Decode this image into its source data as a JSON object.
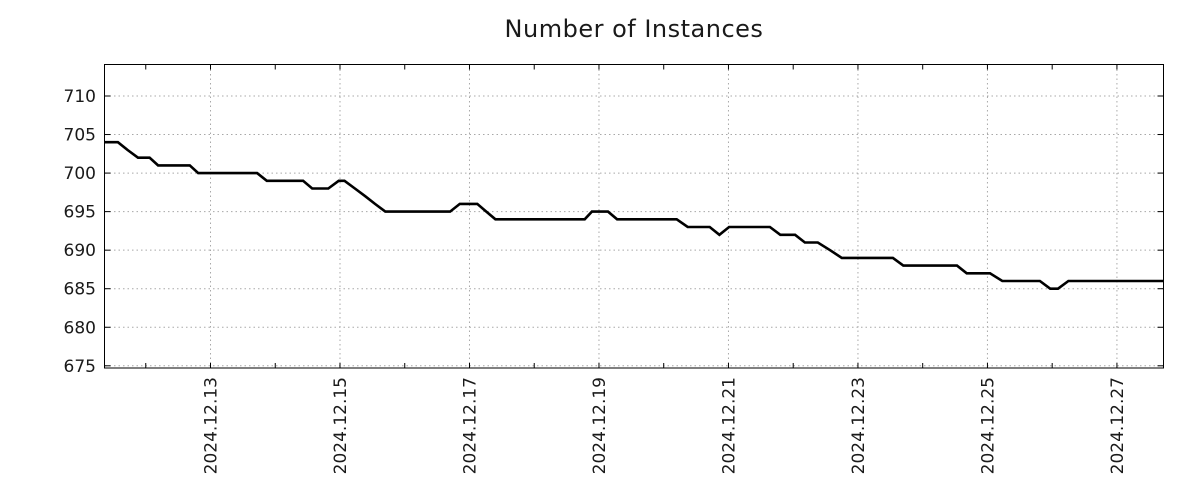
{
  "chart_data": {
    "type": "line",
    "title": "Number of Instances",
    "legend": "none",
    "grid": "dotted",
    "x_axis": {
      "label": "",
      "tick_labels": [
        "2024.12.13",
        "2024.12.15",
        "2024.12.17",
        "2024.12.19",
        "2024.12.21",
        "2024.12.23",
        "2024.12.25",
        "2024.12.27"
      ],
      "labeled_tick_days": [
        2,
        4,
        6,
        8,
        10,
        12,
        14,
        16
      ],
      "minor_tick_days": [
        1,
        2,
        3,
        4,
        5,
        6,
        7,
        8,
        9,
        10,
        11,
        12,
        13,
        14,
        15,
        16
      ],
      "day_zero_date": "2024.12.11",
      "range_days": [
        0.355,
        16.727
      ]
    },
    "y_axis": {
      "label": "",
      "tick_labels": [
        "675",
        "680",
        "685",
        "690",
        "695",
        "700",
        "705",
        "710"
      ],
      "tick_values": [
        675,
        680,
        685,
        690,
        695,
        700,
        705,
        710
      ],
      "range": [
        674.65,
        714.15
      ]
    },
    "series": [
      {
        "name": "instances",
        "color": "#000000",
        "points": [
          [
            0.355,
            704
          ],
          [
            0.57,
            704
          ],
          [
            0.72,
            703
          ],
          [
            0.88,
            702
          ],
          [
            1.06,
            702
          ],
          [
            1.19,
            701
          ],
          [
            1.68,
            701
          ],
          [
            1.81,
            700
          ],
          [
            2.72,
            700
          ],
          [
            2.87,
            699
          ],
          [
            3.43,
            699
          ],
          [
            3.57,
            698
          ],
          [
            3.82,
            698
          ],
          [
            3.98,
            699
          ],
          [
            4.07,
            699
          ],
          [
            4.23,
            698
          ],
          [
            4.39,
            697
          ],
          [
            4.54,
            696
          ],
          [
            4.7,
            695
          ],
          [
            5.7,
            695
          ],
          [
            5.85,
            696
          ],
          [
            6.12,
            696
          ],
          [
            6.26,
            695
          ],
          [
            6.4,
            694
          ],
          [
            7.78,
            694
          ],
          [
            7.89,
            695
          ],
          [
            8.14,
            695
          ],
          [
            8.28,
            694
          ],
          [
            9.2,
            694
          ],
          [
            9.37,
            693
          ],
          [
            9.71,
            693
          ],
          [
            9.86,
            692
          ],
          [
            10.01,
            693
          ],
          [
            10.64,
            693
          ],
          [
            10.8,
            692
          ],
          [
            11.03,
            692
          ],
          [
            11.18,
            691
          ],
          [
            11.38,
            691
          ],
          [
            11.57,
            690
          ],
          [
            11.75,
            689
          ],
          [
            12.54,
            689
          ],
          [
            12.7,
            688
          ],
          [
            13.53,
            688
          ],
          [
            13.68,
            687
          ],
          [
            14.04,
            687
          ],
          [
            14.23,
            686
          ],
          [
            14.81,
            686
          ],
          [
            14.97,
            685
          ],
          [
            15.09,
            685
          ],
          [
            15.25,
            686
          ],
          [
            16.727,
            686
          ]
        ]
      }
    ]
  },
  "colors": {
    "background": "#ffffff",
    "grid": "#a8a8a8",
    "border": "#000000",
    "text": "#1a1a1a",
    "line": "#000000"
  }
}
